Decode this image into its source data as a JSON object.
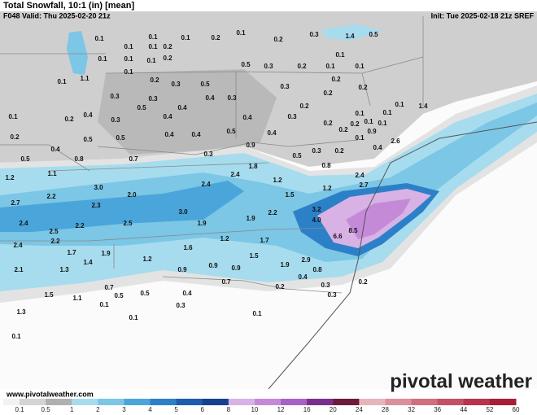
{
  "header": {
    "title": "Total Snowfall, 10:1 (in) [mean]",
    "valid": "F048 Valid: Thu 2025-02-20 21z",
    "init": "Init: Tue 2025-02-18 21z SREF"
  },
  "map": {
    "labels": [
      "0.1",
      "0.1",
      "0.1",
      "0.2",
      "0.1",
      "0.2",
      "0.3",
      "1.4",
      "0.5",
      "0.1",
      "0.1",
      "0.2",
      "0.1",
      "0.1",
      "0.1",
      "0.2",
      "0.1",
      "0.1",
      "1.1",
      "0.1",
      "0.5",
      "0.3",
      "0.2",
      "0.1",
      "0.1",
      "0.2",
      "0.3",
      "0.5",
      "0.3",
      "0.2",
      "0.3",
      "0.3",
      "0.4",
      "0.3",
      "0.2",
      "0.2",
      "0.2",
      "0.4",
      "0.5",
      "0.4",
      "0.2",
      "0.1",
      "0.1",
      "0.1",
      "1.4",
      "0.1",
      "0.3",
      "0.4",
      "0.4",
      "0.3",
      "0.2",
      "0.2",
      "0.1",
      "0.1",
      "0.2",
      "0.9",
      "0.2",
      "0.5",
      "0.5",
      "0.4",
      "0.4",
      "0.5",
      "0.4",
      "0.1",
      "0.4",
      "0.4",
      "0.5",
      "0.8",
      "0.7",
      "0.3",
      "0.9",
      "0.5",
      "0.3",
      "0.2",
      "2.6",
      "1.2",
      "1.1",
      "1.8",
      "1.2",
      "0.8",
      "2.4",
      "2.7",
      "3.0",
      "2.4",
      "2.4",
      "2.2",
      "2.0",
      "1.5",
      "1.2",
      "2.7",
      "2.3",
      "3.0",
      "2.2",
      "3.2",
      "4.0",
      "2.4",
      "2.5",
      "2.2",
      "2.5",
      "1.9",
      "1.9",
      "6.6",
      "8.5",
      "2.2",
      "2.4",
      "1.2",
      "1.7",
      "1.6",
      "1.7",
      "1.9",
      "1.2",
      "1.5",
      "2.9",
      "2.1",
      "1.3",
      "1.4",
      "0.9",
      "0.9",
      "0.9",
      "1.9",
      "0.8",
      "0.4",
      "0.7",
      "0.7",
      "0.2",
      "0.3",
      "0.2",
      "0.3",
      "1.5",
      "1.1",
      "0.5",
      "0.5",
      "0.4",
      "0.1",
      "1.3",
      "0.3",
      "0.1",
      "0.1",
      "0.1"
    ]
  },
  "url": "www.pivotalweather.com",
  "watermark": "pivotal weather",
  "colorbar": {
    "ticks": [
      0.1,
      0.5,
      1,
      2,
      3,
      4,
      5,
      6,
      8,
      10,
      12,
      16,
      20,
      24,
      28,
      32,
      36,
      44,
      52,
      60
    ],
    "colors": [
      "#d4d4d4",
      "#b0b0b0",
      "#a6dcee",
      "#7cc6e6",
      "#4aa6da",
      "#2c80c8",
      "#1d5cae",
      "#16418f",
      "#d8b2e4",
      "#c48ad8",
      "#a861c6",
      "#7a2f8f",
      "#6e1a3a",
      "#e8b4bc",
      "#dc8f9c",
      "#d06f7e",
      "#c45064",
      "#b8344c",
      "#a81e36"
    ]
  }
}
